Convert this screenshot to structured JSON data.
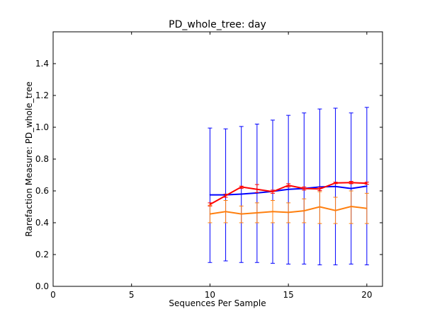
{
  "chart_data": {
    "type": "line",
    "title": "PD_whole_tree: day",
    "xlabel": "Sequences Per Sample",
    "ylabel": "Rarefaction Measure: PD_whole_tree",
    "xlim": [
      0,
      21
    ],
    "ylim": [
      0,
      1.6
    ],
    "xticks": [
      0,
      5,
      10,
      15,
      20
    ],
    "xtick_labels": [
      "0",
      "5",
      "10",
      "15",
      "20"
    ],
    "yticks": [
      0,
      0.2,
      0.4,
      0.6,
      0.8,
      1.0,
      1.2,
      1.4
    ],
    "ytick_labels": [
      "0.0",
      "0.2",
      "0.4",
      "0.6",
      "0.8",
      "1.0",
      "1.2",
      "1.4"
    ],
    "grid": false,
    "legend": "none",
    "x": [
      10,
      11,
      12,
      13,
      14,
      15,
      16,
      17,
      18,
      19,
      20
    ],
    "series": [
      {
        "color": "#0000ff",
        "values": [
          0.575,
          0.575,
          0.58,
          0.587,
          0.597,
          0.61,
          0.615,
          0.625,
          0.628,
          0.615,
          0.63
        ],
        "err_low": [
          0.15,
          0.16,
          0.15,
          0.15,
          0.145,
          0.14,
          0.14,
          0.135,
          0.135,
          0.14,
          0.135
        ],
        "err_high": [
          0.995,
          0.99,
          1.005,
          1.02,
          1.045,
          1.075,
          1.09,
          1.115,
          1.12,
          1.09,
          1.125
        ]
      },
      {
        "color": "#ff0000",
        "values": [
          0.515,
          0.57,
          0.625,
          0.61,
          0.595,
          0.635,
          0.615,
          0.612,
          0.65,
          0.652,
          0.648
        ],
        "err_low": [
          0.505,
          0.56,
          0.615,
          0.59,
          0.585,
          0.625,
          0.605,
          0.602,
          0.645,
          0.645,
          0.642
        ],
        "err_high": [
          0.525,
          0.58,
          0.63,
          0.64,
          0.605,
          0.645,
          0.625,
          0.622,
          0.655,
          0.66,
          0.655
        ]
      },
      {
        "color": "#ff7f0e",
        "values": [
          0.455,
          0.47,
          0.455,
          0.462,
          0.47,
          0.465,
          0.475,
          0.5,
          0.477,
          0.502,
          0.49
        ],
        "err_low": [
          0.4,
          0.4,
          0.4,
          0.4,
          0.4,
          0.4,
          0.4,
          0.395,
          0.395,
          0.395,
          0.395
        ],
        "err_high": [
          0.51,
          0.54,
          0.505,
          0.525,
          0.54,
          0.525,
          0.55,
          0.595,
          0.56,
          0.6,
          0.585
        ]
      }
    ]
  }
}
